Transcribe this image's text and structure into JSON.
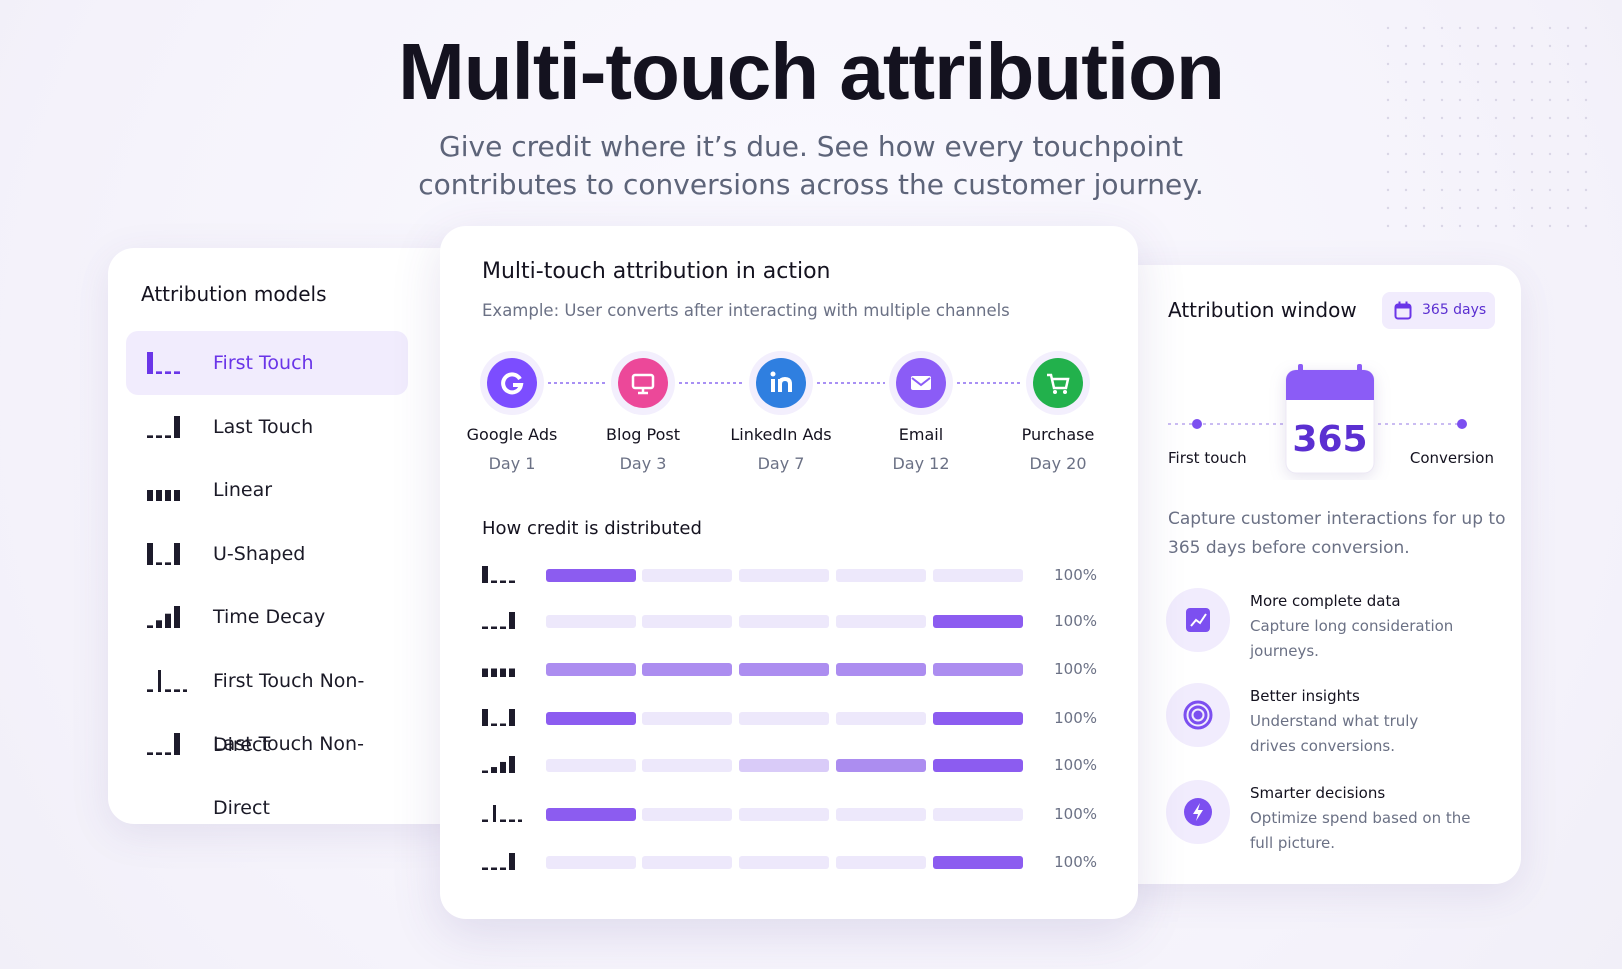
{
  "header": {
    "title": "Multi-touch attribution",
    "subtitle": [
      "Give credit where it’s due. See how every touchpoint",
      "contributes to conversions across the customer journey."
    ]
  },
  "models": {
    "title": "Attribution models",
    "items": [
      "First Touch",
      "Last Touch",
      "Linear",
      "U-Shaped",
      "Time Decay",
      "First Touch Non-Direct",
      "Last Touch Non-Direct"
    ]
  },
  "action": {
    "title": "Multi-touch attribution in action",
    "subtitle": "Example: User converts after interacting with multiple channels",
    "steps": [
      {
        "label": "Google Ads",
        "day": "Day 1"
      },
      {
        "label": "Blog Post",
        "day": "Day 3"
      },
      {
        "label": "LinkedIn Ads",
        "day": "Day 7"
      },
      {
        "label": "Email",
        "day": "Day 12"
      },
      {
        "label": "Purchase",
        "day": "Day 20"
      }
    ],
    "distribution": {
      "title": "How credit is distributed",
      "totals": [
        "100%",
        "100%",
        "100%",
        "100%",
        "100%",
        "100%",
        "100%"
      ]
    }
  },
  "window": {
    "title": "Attribution window",
    "badge": "365 days",
    "calendar": "365",
    "start": "First touch",
    "end": "Conversion",
    "description": [
      "Capture customer interactions for up to",
      "365 days before conversion."
    ],
    "features": [
      {
        "title": "More complete data",
        "text": [
          "Capture long consideration",
          "journeys."
        ]
      },
      {
        "title": "Better insights",
        "text": [
          "Understand what truly",
          "drives conversions."
        ]
      },
      {
        "title": "Smarter decisions",
        "text": [
          "Optimize spend based on the",
          "full picture."
        ]
      }
    ]
  }
}
